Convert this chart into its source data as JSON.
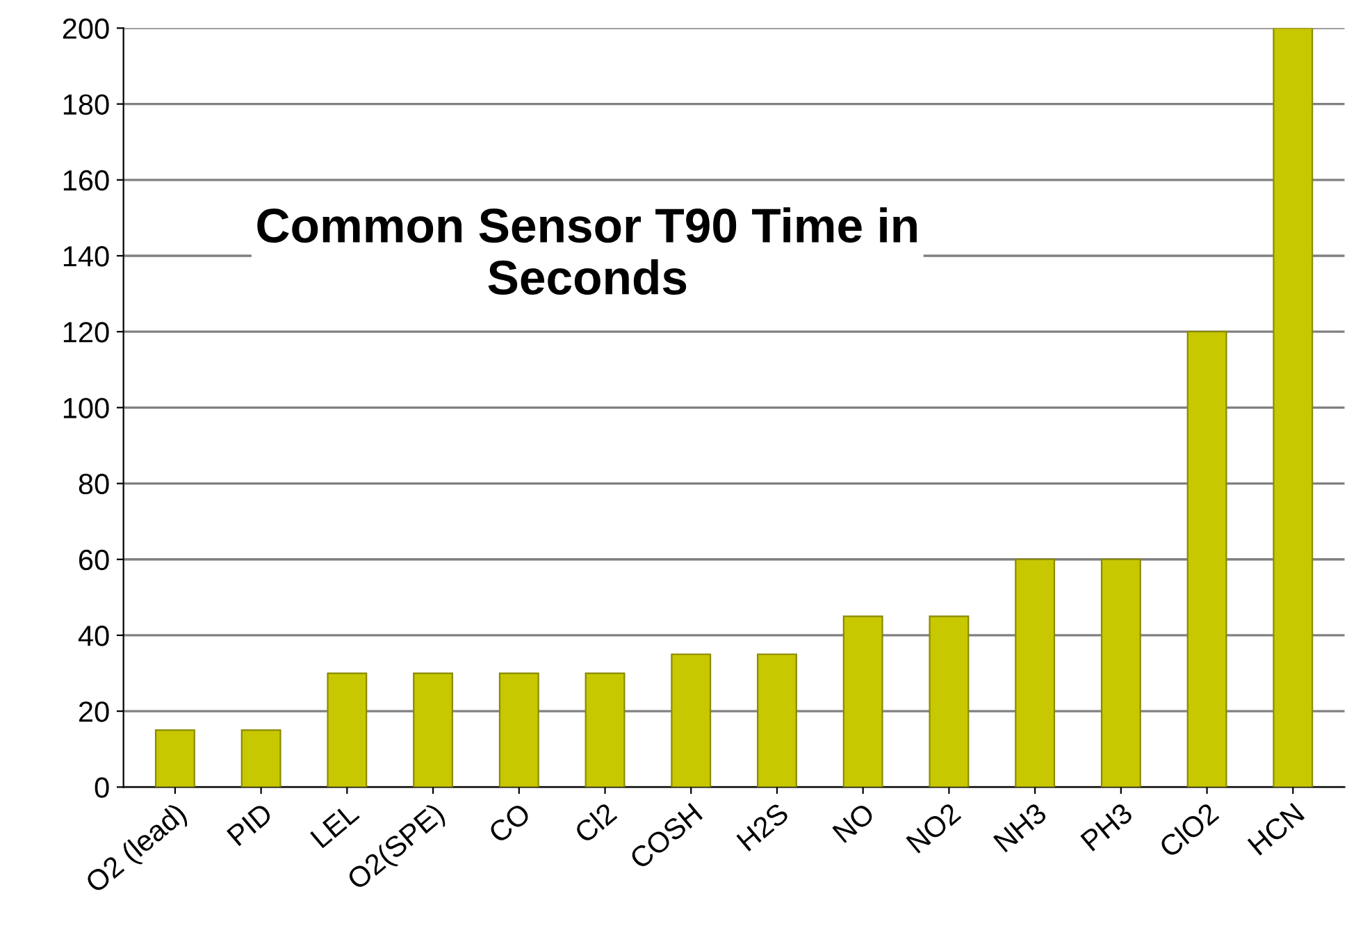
{
  "chart_data": {
    "type": "bar",
    "title": "Common Sensor T90 Time in Seconds",
    "categories": [
      "O2 (lead)",
      "PID",
      "LEL",
      "O2(SPE)",
      "CO",
      "Cl2",
      "COSH",
      "H2S",
      "NO",
      "NO2",
      "NH3",
      "PH3",
      "ClO2",
      "HCN"
    ],
    "values": [
      15,
      15,
      30,
      30,
      30,
      30,
      35,
      35,
      45,
      45,
      60,
      60,
      120,
      200
    ],
    "color": "#c8c800",
    "ylim": [
      0,
      200
    ],
    "yticks": [
      0,
      20,
      40,
      60,
      80,
      100,
      120,
      140,
      160,
      180,
      200
    ],
    "grid": "y"
  }
}
